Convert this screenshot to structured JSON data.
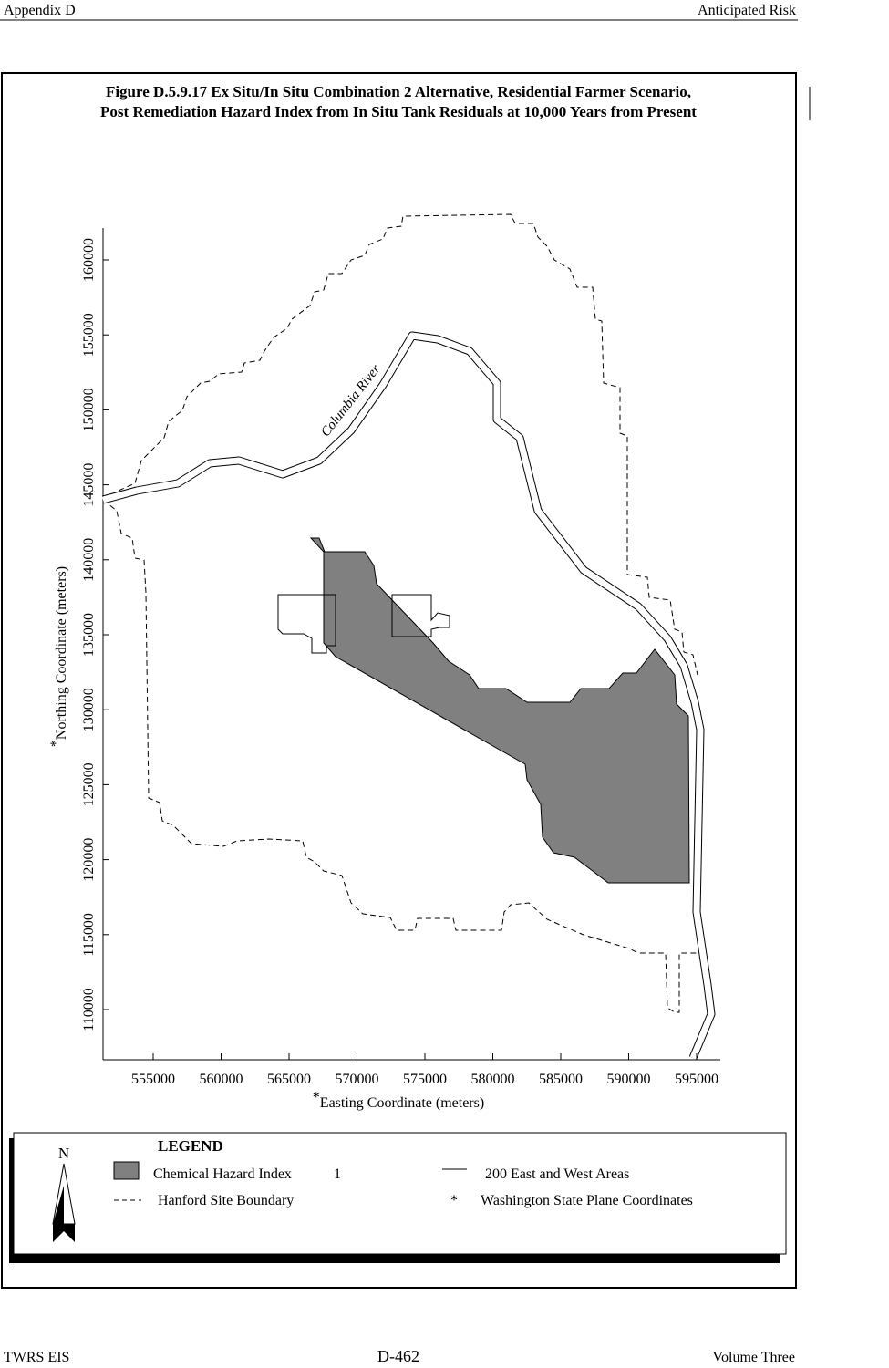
{
  "header": {
    "left": "Appendix D",
    "right": "Anticipated Risk"
  },
  "figure": {
    "title_lines": [
      "Figure D.5.9.17  Ex Situ/In Situ Combination 2 Alternative, Residential Farmer Scenario,",
      "Post Remediation Hazard Index from In Situ Tank Residuals at 10,000 Years from Present"
    ],
    "x_axis": {
      "marker": "*",
      "label": "Easting Coordinate (meters)",
      "ticks": [
        555000,
        560000,
        565000,
        570000,
        575000,
        580000,
        585000,
        590000,
        595000
      ]
    },
    "y_axis": {
      "marker": "*",
      "label": "Northing Coordinate (meters)",
      "ticks": [
        110000,
        115000,
        120000,
        125000,
        130000,
        135000,
        140000,
        145000,
        150000,
        155000,
        160000
      ]
    },
    "annotation": "Columbia River",
    "legend": {
      "title": "LEGEND",
      "north": "N",
      "hazard": {
        "label": "Chemical Hazard Index",
        "note": "1"
      },
      "areas": "200 East and West Areas",
      "boundary": "Hanford Site Boundary",
      "coordinates": {
        "marker": "*",
        "label": "Washington State Plane Coordinates"
      }
    }
  },
  "footer": {
    "left": "TWRS EIS",
    "center": "D-462",
    "right": "Volume Three"
  }
}
